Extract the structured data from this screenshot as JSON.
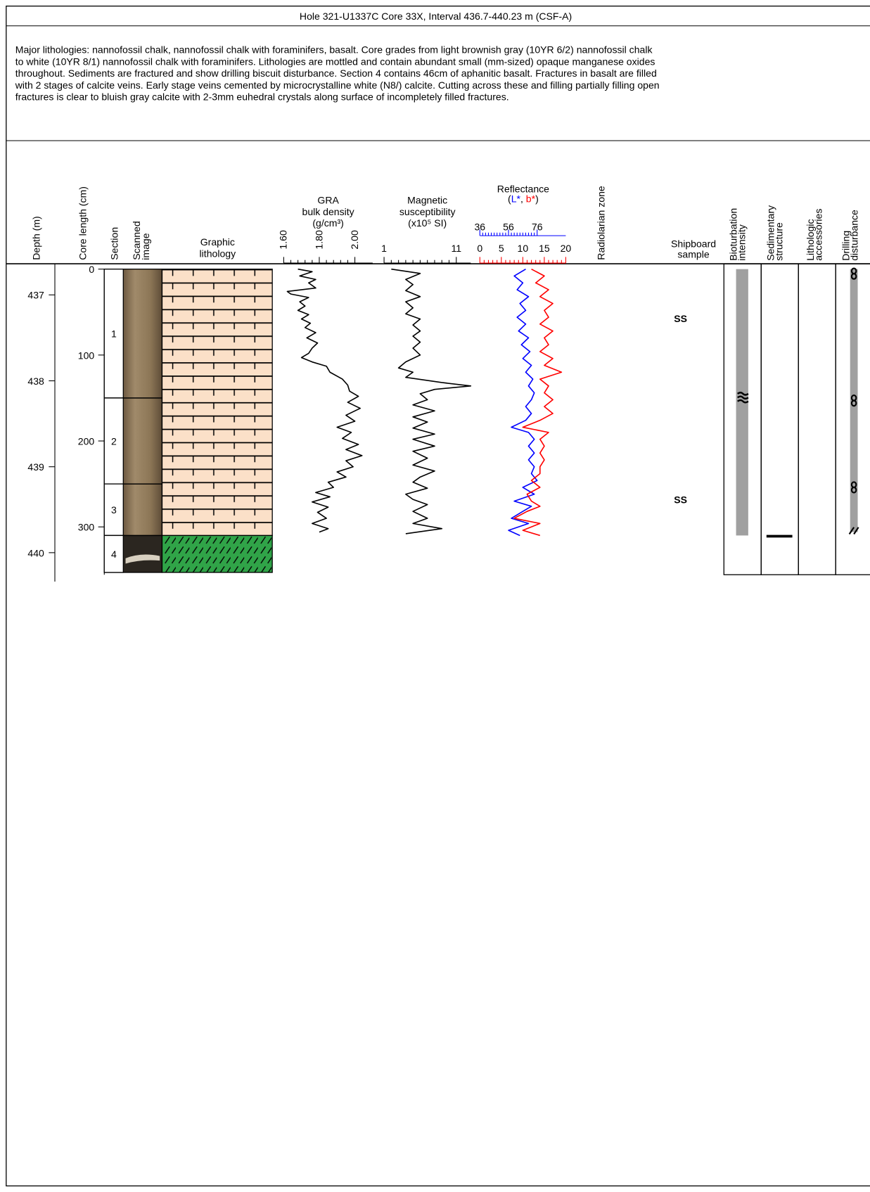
{
  "header": {
    "title": "Hole 321-U1337C Core 33X, Interval 436.7-440.23 m (CSF-A)"
  },
  "description": [
    "Major lithologies:  nannofossil chalk, nannofossil chalk with foraminifers, basalt.  Core grades from light brownish gray (10YR 6/2) nannofossil chalk",
    "to white (10YR 8/1) nannofossil chalk with foraminifers. Lithologies are mottled and contain abundant small (mm-sized) opaque manganese oxides",
    "throughout. Sediments are fractured and show drilling biscuit disturbance. Section 4 contains 46cm of aphanitic basalt.  Fractures in basalt are filled",
    "with 2 stages of calcite veins. Early stage veins cemented by microcrystalline white (N8/) calcite.  Cutting across these and filling partially filling open",
    "fractures is clear to bluish gray calcite with 2-3mm euhedral crystals along surface of incompletely filled fractures."
  ],
  "columns": {
    "depth": "Depth (m)",
    "core_length": "Core length (cm)",
    "section": "Section",
    "scanned_image": [
      "Scanned",
      "image"
    ],
    "graphic_lithology": [
      "Graphic",
      "lithology"
    ],
    "radiolarian_zone": "Radiolarian zone",
    "shipboard_sample": [
      "Shipboard",
      "sample"
    ],
    "bioturbation": [
      "Bioturbation",
      "intensity"
    ],
    "sedimentary_structure": [
      "Sedimentary",
      "structure"
    ],
    "lithologic_accessories": [
      "Lithologic",
      "accessories"
    ],
    "drilling_disturbance": [
      "Drilling",
      "disturbance"
    ]
  },
  "depth_axis": {
    "ylim": [
      436.7,
      440.23
    ],
    "ticks": [
      437,
      438,
      439,
      440
    ]
  },
  "length_axis": {
    "ylim": [
      0,
      353
    ],
    "ticks": [
      0,
      100,
      200,
      300
    ]
  },
  "sections": [
    {
      "label": "1",
      "top": 0,
      "bottom": 150
    },
    {
      "label": "2",
      "top": 150,
      "bottom": 250
    },
    {
      "label": "3",
      "top": 250,
      "bottom": 310
    },
    {
      "label": "4",
      "top": 310,
      "bottom": 353
    }
  ],
  "lithology": [
    {
      "pattern": "chalk",
      "top": 0,
      "bottom": 310
    },
    {
      "pattern": "basalt",
      "top": 310,
      "bottom": 353
    }
  ],
  "samples": [
    {
      "label": "SS",
      "depth_cm": 58
    },
    {
      "label": "SS",
      "depth_cm": 269
    }
  ],
  "bioturbation": {
    "top": 0,
    "bottom": 310,
    "symbols_cm": [
      153
    ]
  },
  "sedimentary_structure": {
    "depth_cm": 310
  },
  "drilling_disturbance": {
    "top": 0,
    "bottom": 306,
    "biscuit_cm": [
      0,
      153,
      254
    ],
    "fracture_cm": [
      304
    ]
  },
  "chart_data": [
    {
      "type": "line",
      "title": [
        "GRA",
        "bulk density",
        "(g/cm³)"
      ],
      "color": "#000000",
      "xlim": [
        1.6,
        2.1
      ],
      "xticks": [
        {
          "value": 1.6,
          "label": "1.60"
        },
        {
          "value": 1.8,
          "label": "1.80"
        },
        {
          "value": 2.0,
          "label": "2.00"
        }
      ],
      "y": [
        0,
        3,
        8,
        12,
        16,
        22,
        26,
        29,
        33,
        38,
        43,
        48,
        53,
        58,
        63,
        68,
        74,
        80,
        86,
        92,
        98,
        103,
        108,
        113,
        120,
        128,
        135,
        142,
        148,
        155,
        162,
        170,
        177,
        184,
        190,
        197,
        204,
        210,
        217,
        223,
        230,
        236,
        242,
        248,
        254,
        260,
        265,
        271,
        277,
        283,
        290,
        296,
        302,
        306
      ],
      "values": [
        1.68,
        1.76,
        1.69,
        1.78,
        1.74,
        1.78,
        1.62,
        1.64,
        1.74,
        1.69,
        1.72,
        1.68,
        1.74,
        1.7,
        1.75,
        1.72,
        1.78,
        1.73,
        1.79,
        1.76,
        1.74,
        1.7,
        1.76,
        1.84,
        1.86,
        1.93,
        1.96,
        1.97,
        2.02,
        1.96,
        2.03,
        1.95,
        2.0,
        1.9,
        1.98,
        1.93,
        2.02,
        1.95,
        2.04,
        1.95,
        1.99,
        1.9,
        1.95,
        1.85,
        1.88,
        1.78,
        1.86,
        1.76,
        1.85,
        1.79,
        1.84,
        1.76,
        1.85,
        1.8
      ]
    },
    {
      "type": "line",
      "title": [
        "Magnetic",
        "susceptibility",
        "(x10⁵ SI)"
      ],
      "color": "#000000",
      "xlim": [
        1,
        13
      ],
      "xticks": [
        1,
        11
      ],
      "y": [
        0,
        5,
        12,
        18,
        25,
        32,
        38,
        45,
        52,
        58,
        65,
        72,
        78,
        85,
        92,
        100,
        108,
        115,
        120,
        126,
        132,
        136,
        140,
        145,
        152,
        158,
        165,
        172,
        178,
        185,
        192,
        198,
        206,
        212,
        220,
        228,
        235,
        242,
        248,
        255,
        262,
        268,
        274,
        282,
        290,
        296,
        302,
        308
      ],
      "values": [
        2,
        6,
        4,
        5,
        4,
        6,
        4,
        5,
        4,
        6,
        5,
        6,
        5,
        6,
        5,
        6,
        4,
        3,
        5,
        4,
        9,
        13,
        8,
        6,
        7,
        5,
        8,
        5,
        7,
        5,
        8,
        5,
        8,
        5,
        7,
        5,
        8,
        6,
        5,
        7,
        4,
        5,
        7,
        5,
        7,
        5,
        9,
        4
      ]
    },
    {
      "type": "line",
      "title": [
        "Reflectance"
      ],
      "title_parts": [
        "(",
        ", ",
        ")"
      ],
      "xlim": [
        0,
        20
      ],
      "xticks": [
        0,
        5,
        10,
        15,
        20
      ],
      "x2lim": [
        36,
        96
      ],
      "x2ticks": [
        36,
        56,
        76
      ],
      "series": [
        {
          "name": "L*",
          "color": "#0000ff",
          "axis": "x2",
          "y": [
            0,
            8,
            16,
            24,
            32,
            40,
            48,
            56,
            64,
            72,
            80,
            88,
            96,
            104,
            112,
            120,
            128,
            136,
            144,
            152,
            160,
            168,
            176,
            184,
            190,
            198,
            206,
            214,
            222,
            230,
            238,
            246,
            254,
            262,
            270,
            276,
            282,
            290,
            296,
            304,
            310
          ],
          "values": [
            68,
            60,
            66,
            62,
            70,
            64,
            68,
            62,
            68,
            63,
            70,
            65,
            71,
            66,
            72,
            68,
            73,
            70,
            74,
            72,
            68,
            72,
            68,
            58,
            70,
            74,
            70,
            74,
            70,
            74,
            72,
            76,
            66,
            74,
            60,
            72,
            66,
            58,
            70,
            56,
            64
          ]
        },
        {
          "name": "b*",
          "color": "#ff0000",
          "y": [
            0,
            8,
            16,
            24,
            32,
            40,
            48,
            56,
            64,
            72,
            80,
            88,
            96,
            104,
            112,
            120,
            128,
            136,
            144,
            152,
            160,
            168,
            176,
            184,
            190,
            198,
            206,
            214,
            222,
            230,
            238,
            246,
            254,
            262,
            270,
            276,
            282,
            290,
            296,
            304,
            310
          ],
          "values": [
            12,
            15,
            13,
            16,
            14,
            17,
            15,
            16,
            14,
            17,
            15,
            16,
            14,
            17,
            15,
            19,
            14,
            16,
            15,
            17,
            15,
            17,
            14,
            10,
            16,
            14,
            15,
            14,
            15,
            14,
            14,
            12,
            14,
            11,
            12,
            14,
            11,
            8,
            14,
            10,
            14
          ]
        }
      ]
    }
  ]
}
